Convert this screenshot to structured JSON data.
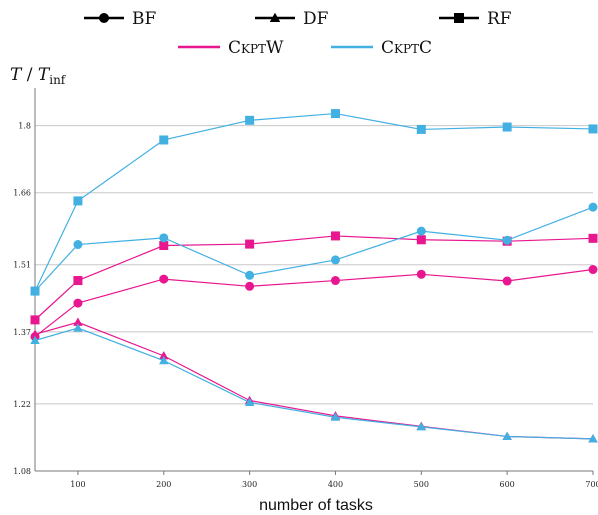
{
  "chart_data": {
    "type": "line",
    "ylabel": {
      "main": "T",
      "sep": " / ",
      "sub_base": "T",
      "sub": "inf"
    },
    "xlabel": "number of tasks",
    "x": [
      50,
      100,
      200,
      300,
      400,
      500,
      600,
      700
    ],
    "xticks": [
      "100",
      "200",
      "300",
      "400",
      "500",
      "600",
      "700"
    ],
    "xtick_values": [
      100,
      200,
      300,
      400,
      500,
      600,
      700
    ],
    "xlim": [
      50,
      700
    ],
    "ylim": [
      1.08,
      1.87
    ],
    "yticks": [
      "1.08",
      "1.22",
      "1.37",
      "1.51",
      "1.66",
      "1.8"
    ],
    "ytick_values": [
      1.08,
      1.22,
      1.37,
      1.51,
      1.66,
      1.8
    ],
    "grid": "horizontal",
    "legend": {
      "placement": "top",
      "markers": [
        {
          "name": "BF",
          "marker": "circle"
        },
        {
          "name": "DF",
          "marker": "triangle"
        },
        {
          "name": "RF",
          "marker": "square"
        }
      ],
      "colors": [
        {
          "name": "CkptW",
          "color": "#e8168f"
        },
        {
          "name": "CkptC",
          "color": "#43b0e2"
        }
      ]
    },
    "series": [
      {
        "method": "CkptW",
        "strategy": "BF",
        "color": "#e8168f",
        "marker": "circle",
        "values": [
          1.36,
          1.43,
          1.48,
          1.465,
          1.477,
          1.49,
          1.476,
          1.5
        ]
      },
      {
        "method": "CkptW",
        "strategy": "DF",
        "color": "#e8168f",
        "marker": "triangle",
        "values": [
          1.365,
          1.39,
          1.32,
          1.227,
          1.195,
          1.173,
          1.152,
          1.147
        ]
      },
      {
        "method": "CkptW",
        "strategy": "RF",
        "color": "#e8168f",
        "marker": "square",
        "values": [
          1.395,
          1.477,
          1.55,
          1.553,
          1.57,
          1.562,
          1.559,
          1.565
        ]
      },
      {
        "method": "CkptC",
        "strategy": "BF",
        "color": "#43b0e2",
        "marker": "circle",
        "values": [
          1.455,
          1.552,
          1.566,
          1.488,
          1.52,
          1.58,
          1.561,
          1.63
        ]
      },
      {
        "method": "CkptC",
        "strategy": "DF",
        "color": "#43b0e2",
        "marker": "triangle",
        "values": [
          1.352,
          1.378,
          1.31,
          1.223,
          1.192,
          1.172,
          1.152,
          1.147
        ]
      },
      {
        "method": "CkptC",
        "strategy": "RF",
        "color": "#43b0e2",
        "marker": "square",
        "values": [
          1.455,
          1.643,
          1.77,
          1.811,
          1.825,
          1.792,
          1.797,
          1.793
        ]
      }
    ]
  }
}
